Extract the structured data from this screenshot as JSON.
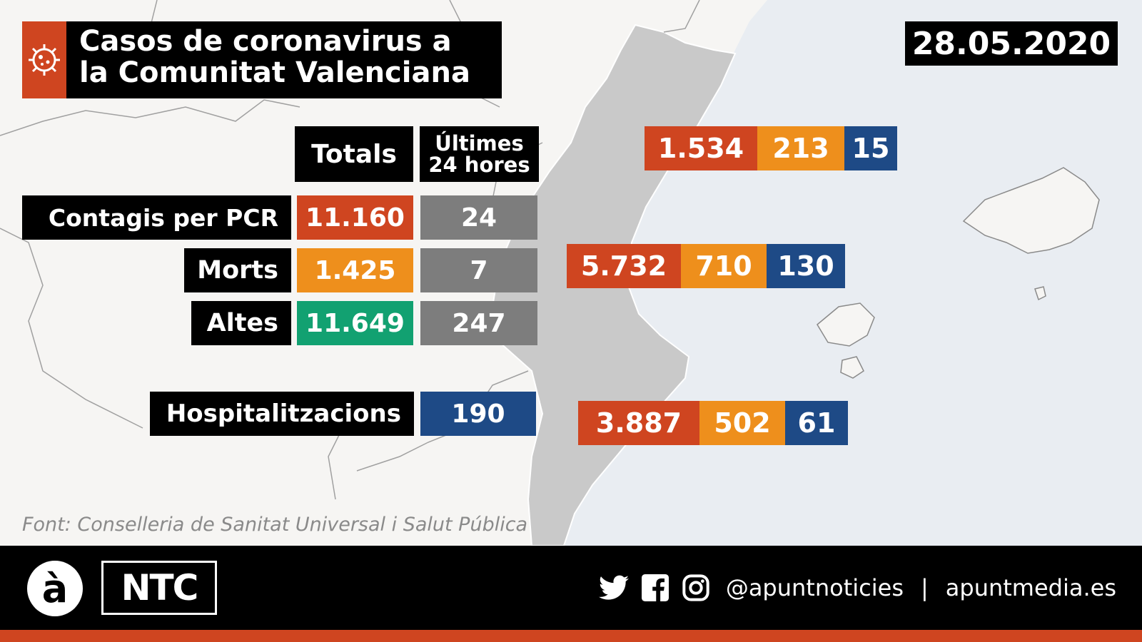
{
  "title": {
    "line1": "Casos de coronavirus a",
    "line2": "la Comunitat Valenciana"
  },
  "date": "28.05.2020",
  "headers": {
    "totals": "Totals",
    "last24_line1": "Últimes",
    "last24_line2": "24 hores"
  },
  "rows": [
    {
      "label": "Contagis per PCR",
      "total": "11.160",
      "last24": "24"
    },
    {
      "label": "Morts",
      "total": "1.425",
      "last24": "7"
    },
    {
      "label": "Altes",
      "total": "11.649",
      "last24": "247"
    }
  ],
  "hospital": {
    "label": "Hospitalitzacions",
    "value": "190"
  },
  "provinces": [
    {
      "v1": "1.534",
      "v2": "213",
      "v3": "15"
    },
    {
      "v1": "5.732",
      "v2": "710",
      "v3": "130"
    },
    {
      "v1": "3.887",
      "v2": "502",
      "v3": "61"
    }
  ],
  "source": "Font: Conselleria de Sanitat Universal i Salut Pública",
  "footer": {
    "logo_letter": "à",
    "logo_text": "NTC",
    "handle": "@apuntnoticies",
    "separator": "|",
    "site": "apuntmedia.es"
  },
  "icons": [
    "virus-icon",
    "twitter-icon",
    "facebook-icon",
    "instagram-icon"
  ],
  "colors": {
    "orange": "#cf4520",
    "amber": "#ee8f1c",
    "green": "#12a171",
    "grey": "#7d7d7d",
    "blue": "#1e4a86",
    "sea": "#e9edf2",
    "region": "#c9c9c9"
  }
}
